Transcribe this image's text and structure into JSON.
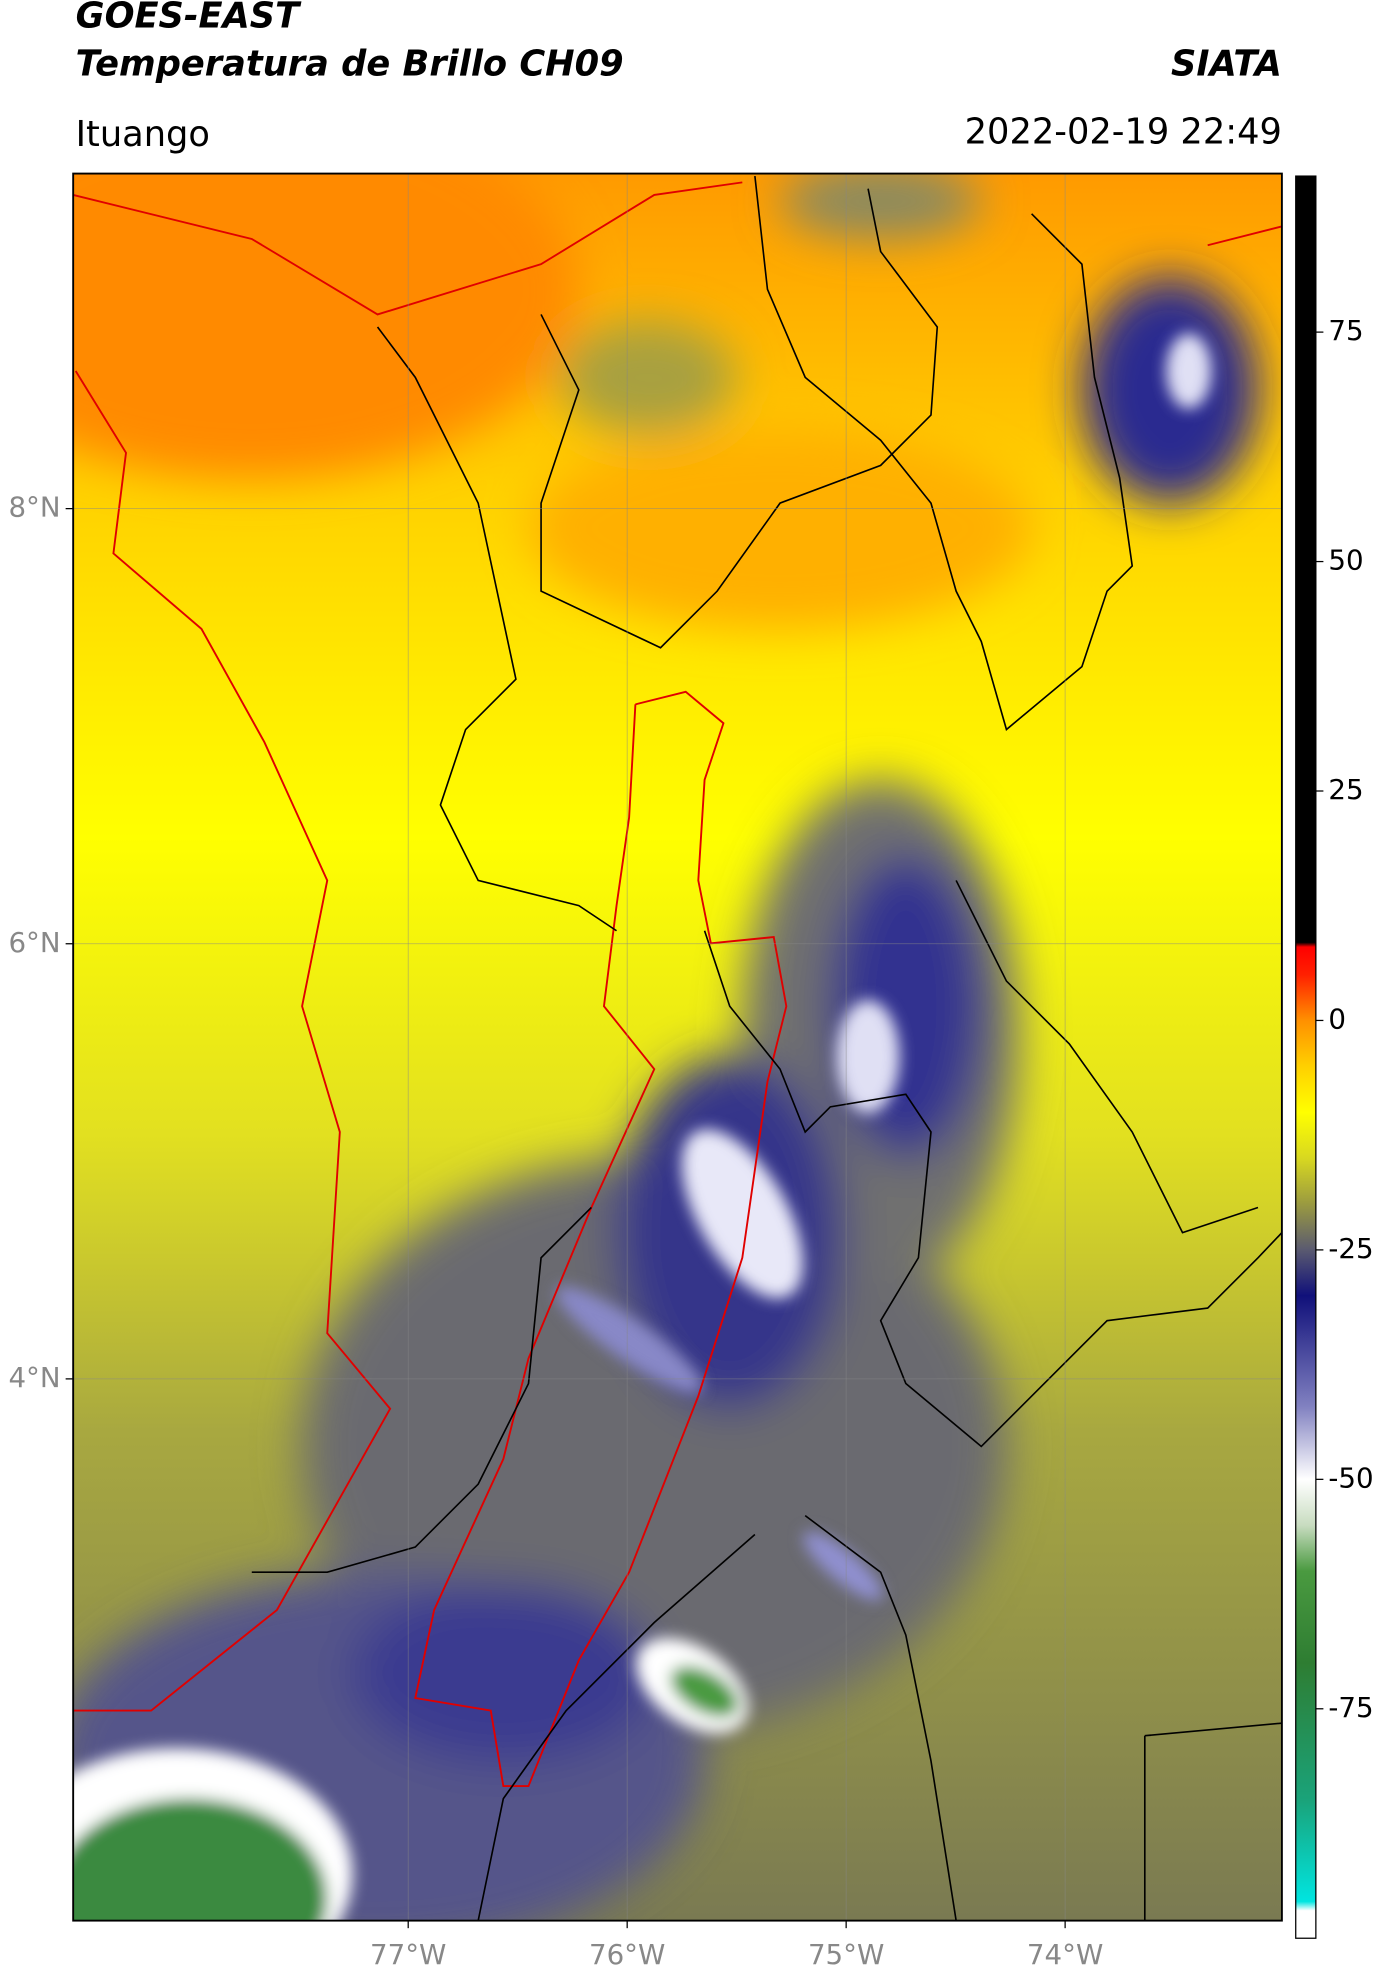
{
  "header": {
    "title": "GOES-EAST",
    "subtitle": "Temperatura de Brillo CH09",
    "source": "SIATA",
    "region": "Ituango",
    "datetime": "2022-02-19 22:49"
  },
  "map": {
    "xlim": [
      -78.53,
      -73.01
    ],
    "ylim": [
      1.51,
      9.54
    ],
    "xticks": [
      {
        "value": -77,
        "label": "77°W"
      },
      {
        "value": -76,
        "label": "76°W"
      },
      {
        "value": -75,
        "label": "75°W"
      },
      {
        "value": -74,
        "label": "74°W"
      }
    ],
    "yticks": [
      {
        "value": 4,
        "label": "4°N"
      },
      {
        "value": 6,
        "label": "6°N"
      },
      {
        "value": 8,
        "label": "8°N"
      }
    ],
    "grid": true
  },
  "colorbar": {
    "lim": [
      -100,
      92
    ],
    "ticks": [
      -75,
      -50,
      -25,
      0,
      25,
      50,
      75
    ],
    "stops": [
      {
        "value": -100,
        "color": "#ffffff"
      },
      {
        "value": -97,
        "color": "#ffffff"
      },
      {
        "value": -96,
        "color": "#00e5e0"
      },
      {
        "value": -85,
        "color": "#1aa37a"
      },
      {
        "value": -70,
        "color": "#2e7d32"
      },
      {
        "value": -60,
        "color": "#4a9a40"
      },
      {
        "value": -55,
        "color": "#c8dcc0"
      },
      {
        "value": -50,
        "color": "#ffffff"
      },
      {
        "value": -42,
        "color": "#8080c0"
      },
      {
        "value": -30,
        "color": "#10107a"
      },
      {
        "value": -25,
        "color": "#5a5a70"
      },
      {
        "value": -20,
        "color": "#9a9a40"
      },
      {
        "value": -15,
        "color": "#d8d820"
      },
      {
        "value": -10,
        "color": "#ffff00"
      },
      {
        "value": -5,
        "color": "#ffd000"
      },
      {
        "value": 0,
        "color": "#ff9000"
      },
      {
        "value": 5,
        "color": "#ff2000"
      },
      {
        "value": 8,
        "color": "#ff0000"
      },
      {
        "value": 8.5,
        "color": "#000000"
      },
      {
        "value": 92,
        "color": "#000000"
      }
    ]
  }
}
